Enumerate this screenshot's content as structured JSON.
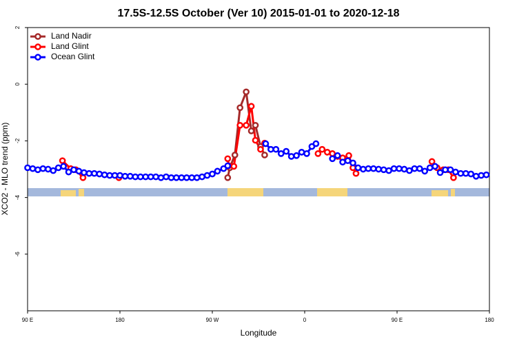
{
  "chart_data": {
    "type": "line",
    "title": "17.5S-12.5S October (Ver 10)   2015-01-01 to 2020-12-18",
    "xlabel": "Longitude",
    "ylabel": "XCO2 - MLO trend (ppm)",
    "xlim": [
      90,
      540
    ],
    "ylim": [
      -8,
      2
    ],
    "xticks": [
      {
        "value": 90,
        "label": "90 E"
      },
      {
        "value": 180,
        "label": "180"
      },
      {
        "value": 270,
        "label": "90 W"
      },
      {
        "value": 360,
        "label": "0"
      },
      {
        "value": 450,
        "label": "90 E"
      },
      {
        "value": 540,
        "label": "180"
      }
    ],
    "yticks": [
      2,
      0,
      -2,
      -4,
      -6
    ],
    "legend": "top-left",
    "series": [
      {
        "name": "Land Nadir",
        "color": "#a52a2a",
        "x": [
          285,
          287,
          292,
          297,
          303,
          308,
          312,
          317,
          321
        ],
        "values": [
          -3.3,
          -2.95,
          -2.5,
          -0.83,
          -0.27,
          -1.65,
          -1.45,
          -2.2,
          -2.5
        ]
      },
      {
        "name": "Land Glint",
        "color": "#ff0000",
        "x": [
          124,
          132,
          137,
          144,
          null,
          179,
          null,
          285,
          286,
          291,
          297,
          303,
          308,
          312,
          317,
          321,
          null,
          373,
          377,
          382,
          387,
          392,
          397,
          403,
          407,
          410,
          null,
          484,
          489,
          495,
          500,
          505
        ],
        "values": [
          -2.7,
          -2.98,
          -3.02,
          -3.3,
          null,
          -3.3,
          null,
          -2.63,
          -2.88,
          -2.9,
          -1.45,
          -1.45,
          -0.78,
          -1.98,
          -2.3,
          -2.08,
          null,
          -2.45,
          -2.3,
          -2.4,
          -2.45,
          -2.55,
          -2.6,
          -2.52,
          -2.95,
          -3.15,
          null,
          -2.73,
          -2.95,
          -3.02,
          -3.02,
          -3.3
        ]
      },
      {
        "name": "Ocean Glint",
        "color": "#0000ff",
        "x": [
          90,
          95,
          100,
          105,
          110,
          115,
          120,
          125,
          130,
          135,
          140,
          145,
          150,
          155,
          160,
          165,
          170,
          175,
          180,
          185,
          190,
          195,
          200,
          205,
          210,
          215,
          220,
          225,
          230,
          235,
          240,
          245,
          250,
          255,
          260,
          265,
          270,
          275,
          281,
          285,
          null,
          322,
          327,
          332,
          337,
          342,
          347,
          352,
          357,
          362,
          367,
          371,
          null,
          387,
          392,
          397,
          402,
          407,
          412,
          417,
          422,
          427,
          432,
          437,
          442,
          447,
          452,
          457,
          462,
          467,
          472,
          477,
          482,
          487,
          492,
          497,
          502,
          507,
          512,
          517,
          522,
          527,
          532,
          537
        ],
        "values": [
          -2.95,
          -2.98,
          -3.02,
          -2.98,
          -3.0,
          -3.05,
          -2.95,
          -2.9,
          -3.1,
          -3.02,
          -3.07,
          -3.12,
          -3.15,
          -3.15,
          -3.17,
          -3.2,
          -3.22,
          -3.22,
          -3.22,
          -3.25,
          -3.25,
          -3.27,
          -3.27,
          -3.27,
          -3.27,
          -3.27,
          -3.3,
          -3.27,
          -3.3,
          -3.3,
          -3.3,
          -3.3,
          -3.3,
          -3.3,
          -3.27,
          -3.22,
          -3.17,
          -3.07,
          -2.98,
          -2.88,
          null,
          -2.1,
          -2.3,
          -2.3,
          -2.45,
          -2.37,
          -2.55,
          -2.52,
          -2.4,
          -2.45,
          -2.2,
          -2.1,
          null,
          -2.63,
          -2.52,
          -2.75,
          -2.7,
          -2.78,
          -2.95,
          -3.0,
          -2.98,
          -2.98,
          -3.0,
          -3.02,
          -3.05,
          -2.98,
          -2.98,
          -3.0,
          -3.05,
          -2.98,
          -2.98,
          -3.07,
          -2.95,
          -2.9,
          -3.12,
          -3.02,
          -3.02,
          -3.1,
          -3.15,
          -3.15,
          -3.17,
          -3.25,
          -3.22,
          -3.2
        ]
      }
    ]
  }
}
